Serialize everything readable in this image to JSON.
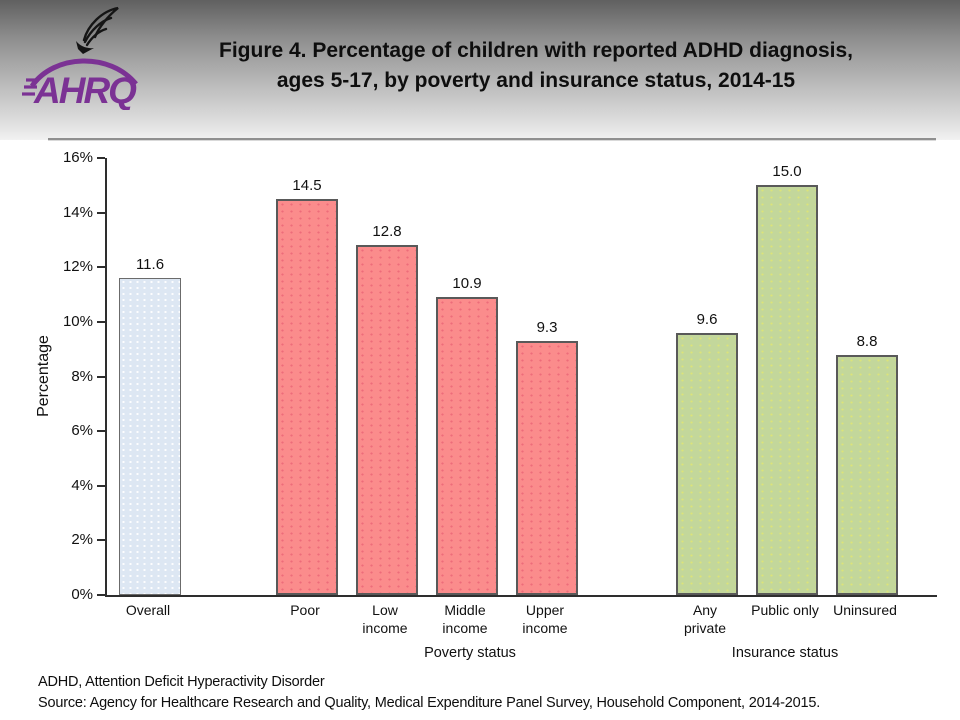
{
  "header": {
    "title_line1": "Figure 4. Percentage of children with reported ADHD diagnosis,",
    "title_line2": "ages 5-17, by poverty and insurance status, 2014-15",
    "logo_text": "AHRQ"
  },
  "chart_data": {
    "type": "bar",
    "title": "Figure 4. Percentage of children with reported ADHD diagnosis, ages 5-17, by poverty and insurance status, 2014-15",
    "xlabel": "",
    "ylabel": "Percentage",
    "ylim": [
      0,
      16
    ],
    "ytick_labels": [
      "0%",
      "2%",
      "4%",
      "6%",
      "8%",
      "10%",
      "12%",
      "14%",
      "16%"
    ],
    "grid": "off",
    "legend": "none",
    "categories": [
      "Overall",
      "Poor",
      "Low income",
      "Middle income",
      "Upper income",
      "Any private",
      "Public only",
      "Uninsured"
    ],
    "values": [
      11.6,
      14.5,
      12.8,
      10.9,
      9.3,
      9.6,
      15.0,
      8.8
    ],
    "value_labels": [
      "11.6",
      "14.5",
      "12.8",
      "10.9",
      "9.3",
      "9.6",
      "15.0",
      "8.8"
    ],
    "groups": [
      "overall",
      "poverty",
      "poverty",
      "poverty",
      "poverty",
      "insurance",
      "insurance",
      "insurance"
    ],
    "group_axis_labels": [
      "Poverty status",
      "Insurance status"
    ],
    "colors": {
      "overall": "#DDE7F3",
      "poverty": "#FB8C8C",
      "insurance": "#C3D79B",
      "bar_border": "#595959",
      "logo_purple": "#7B3294"
    }
  },
  "footer": {
    "line1": "ADHD, Attention Deficit Hyperactivity Disorder",
    "line2": "Source: Agency for Healthcare Research and Quality, Medical Expenditure Panel Survey, Household Component, 2014-2015."
  }
}
